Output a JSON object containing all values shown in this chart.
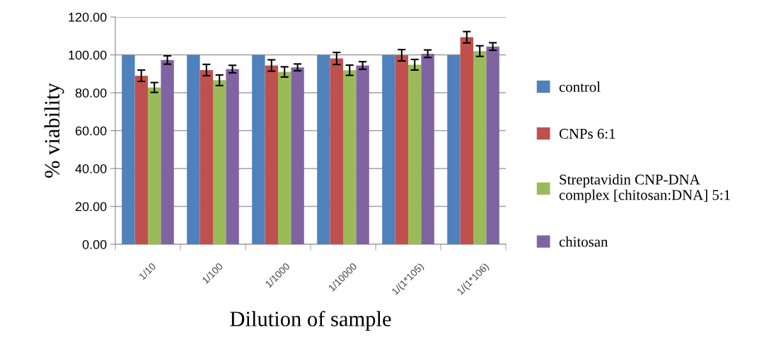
{
  "chart_data": {
    "type": "bar",
    "xlabel": "Dilution of sample",
    "ylabel": "% viability",
    "categories": [
      "1/10",
      "1/100",
      "1/1000",
      "1/10000",
      "1/(1*105)",
      "1/(1*106)"
    ],
    "series": [
      {
        "name": "control",
        "color": "#4f81bd",
        "values": [
          100,
          100,
          100,
          100,
          100,
          100
        ]
      },
      {
        "name": "CNPs 6:1",
        "color": "#c0504d",
        "values": [
          89,
          92,
          94.4,
          98.1,
          99.8,
          109.3
        ],
        "errors": [
          3,
          3,
          3,
          3.2,
          3,
          3
        ]
      },
      {
        "name": "Streptavidin CNP-DNA\ncomplex [chitosan:DNA] 5:1",
        "color": "#9bbb59",
        "values": [
          82.8,
          86.6,
          91,
          91.9,
          94.8,
          102
        ],
        "errors": [
          2.6,
          2.8,
          2.7,
          2.7,
          2.8,
          2.8
        ]
      },
      {
        "name": "chitosan",
        "color": "#8064a2",
        "values": [
          97.3,
          92.5,
          93.4,
          94.4,
          100.6,
          104.4
        ],
        "errors": [
          2.2,
          2,
          1.8,
          2,
          2,
          2
        ]
      }
    ],
    "ylim": [
      0,
      120
    ],
    "yticks": [
      {
        "value": 0,
        "label": "0.00"
      },
      {
        "value": 20,
        "label": "20.00"
      },
      {
        "value": 40,
        "label": "40.00"
      },
      {
        "value": 60,
        "label": "60.00"
      },
      {
        "value": 80,
        "label": "80.00"
      },
      {
        "value": 100,
        "label": "100.00"
      },
      {
        "value": 120,
        "label": "120.00"
      }
    ],
    "grid": "y",
    "legend": "right"
  }
}
